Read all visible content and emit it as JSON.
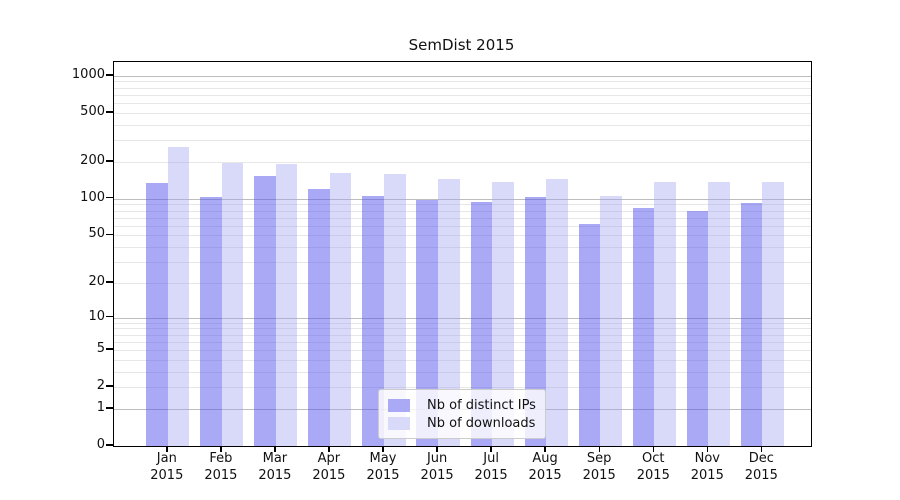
{
  "chart_data": {
    "type": "bar",
    "title": "SemDist 2015",
    "categories": [
      "Jan",
      "Feb",
      "Mar",
      "Apr",
      "May",
      "Jun",
      "Jul",
      "Aug",
      "Sep",
      "Oct",
      "Nov",
      "Dec"
    ],
    "category_year": "2015",
    "series": [
      {
        "name": "Nb of distinct IPs",
        "color": "#a9a9f6",
        "bar_fill_rgba": "rgba(83,83,237,0.5)",
        "values": [
          135,
          104,
          152,
          121,
          105,
          97,
          94,
          104,
          62,
          84,
          80,
          93
        ]
      },
      {
        "name": "Nb of downloads",
        "color": "#d9d9f9",
        "bar_fill_rgba": "rgba(160,160,240,0.4)",
        "values": [
          262,
          196,
          193,
          163,
          159,
          145,
          136,
          144,
          106,
          138,
          136,
          137
        ]
      }
    ],
    "yscale": "log10(value+1)",
    "yticks": [
      1000,
      500,
      200,
      100,
      50,
      20,
      10,
      5,
      2,
      1,
      0
    ],
    "ylim": [
      0,
      1290
    ],
    "xlabel": "",
    "ylabel": "",
    "grid": true,
    "legend_position": "lower center"
  },
  "colors": {
    "background": "#ffffff",
    "axis": "#000000",
    "grid_major": "#bdbdbd",
    "grid_minor": "#e7e7e7",
    "text": "#111111"
  }
}
